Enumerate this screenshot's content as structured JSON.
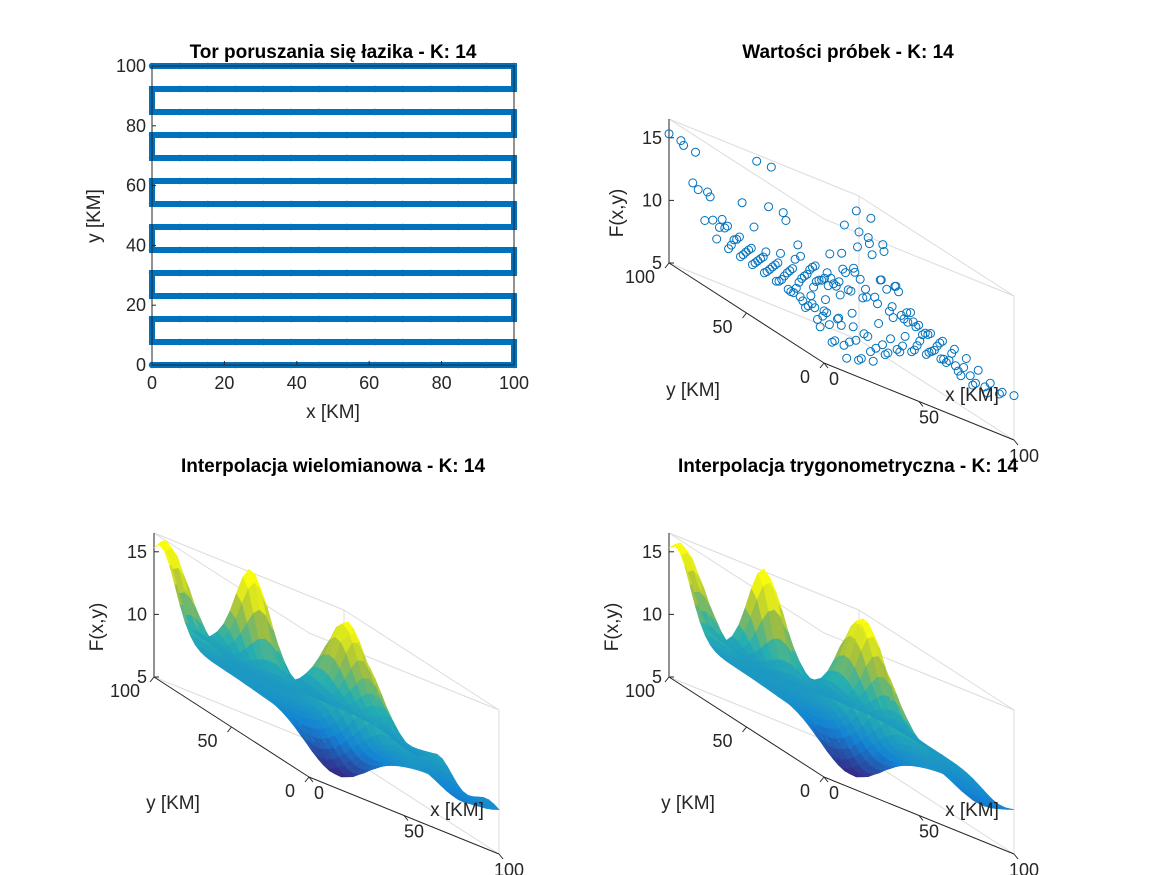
{
  "chart_data": [
    {
      "type": "line",
      "title": "Tor poruszania się łazika - K: 14",
      "xlabel": "x [KM]",
      "ylabel": "y [KM]",
      "xlim": [
        0,
        100
      ],
      "ylim": [
        0,
        100
      ],
      "xticks": [
        "0",
        "20",
        "40",
        "60",
        "80",
        "100"
      ],
      "yticks": [
        "0",
        "20",
        "40",
        "60",
        "80",
        "100"
      ],
      "rows_y": [
        0,
        7.69,
        15.38,
        23.08,
        30.77,
        38.46,
        46.15,
        53.85,
        61.54,
        69.23,
        76.92,
        84.62,
        92.31,
        100
      ],
      "samples_per_row": 14,
      "series": [
        {
          "values_description": "boustrophedon (serpentine) path of 14 rows, each sampled at 14 x positions from 0 to 100",
          "color": "#0072BD"
        }
      ]
    },
    {
      "type": "scatter",
      "title": "Wartości próbek - K: 14",
      "xlabel": "x [KM]",
      "ylabel": "y [KM]",
      "zlabel": "F(x,y)",
      "xticks": [
        "0",
        "50",
        "100"
      ],
      "yticks": [
        "0",
        "50",
        "100"
      ],
      "zticks": [
        "5",
        "10",
        "15"
      ],
      "zlim": [
        5,
        16.5
      ],
      "marker": "open-circle",
      "color": "#0072BD"
    },
    {
      "type": "surface",
      "title": "Interpolacja wielomianowa - K: 14",
      "xlabel": "x [KM]",
      "ylabel": "y [KM]",
      "zlabel": "F(x,y)",
      "xticks": [
        "0",
        "50",
        "100"
      ],
      "yticks": [
        "0",
        "50",
        "100"
      ],
      "zticks": [
        "5",
        "10",
        "15"
      ],
      "zlim": [
        5,
        16.5
      ],
      "colormap": "parula"
    },
    {
      "type": "surface",
      "title": "Interpolacja trygonometryczna - K: 14",
      "xlabel": "x [KM]",
      "ylabel": "y [KM]",
      "zlabel": "F(x,y)",
      "xticks": [
        "0",
        "50",
        "100"
      ],
      "yticks": [
        "0",
        "50",
        "100"
      ],
      "zticks": [
        "5",
        "10",
        "15"
      ],
      "zlim": [
        5,
        16.5
      ],
      "colormap": "parula"
    }
  ]
}
